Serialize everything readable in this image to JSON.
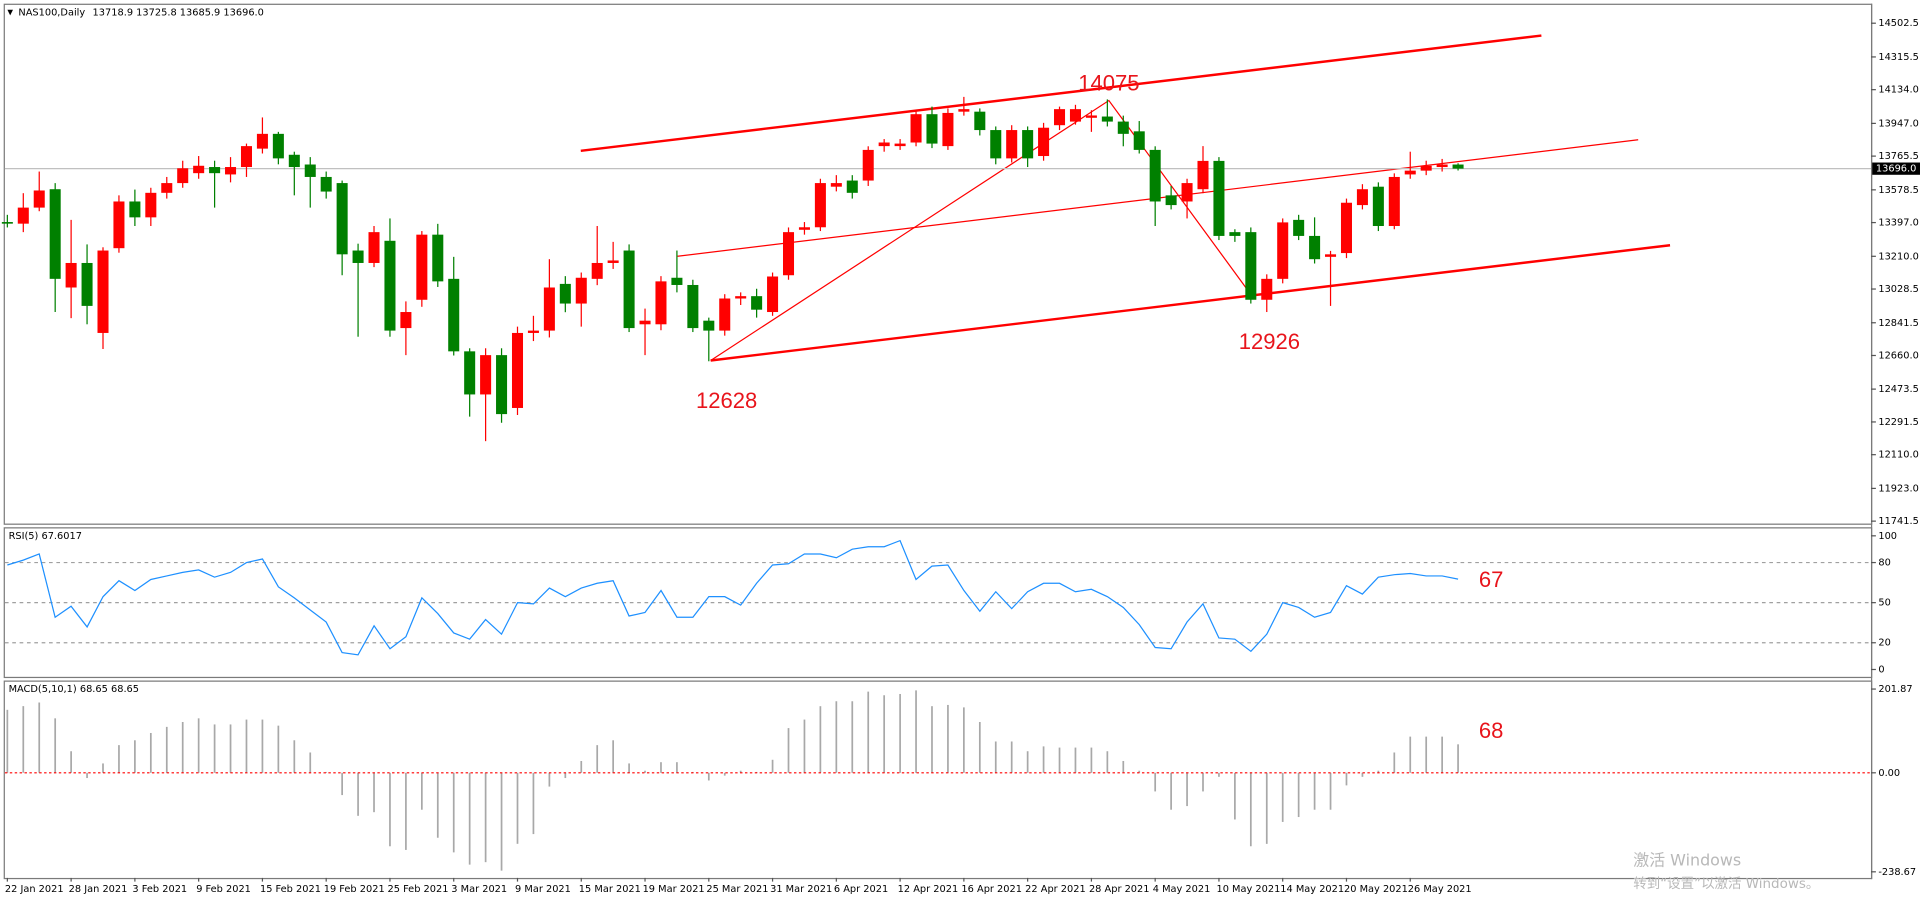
{
  "chart_data": [
    {
      "type": "candlestick",
      "title": "NAS100,Daily",
      "subtitle": "13718.9 13725.8 13685.9 13696.0",
      "categories": [
        "22 Jan 2021",
        null,
        null,
        null,
        "28 Jan 2021",
        null,
        null,
        null,
        "3 Feb 2021",
        null,
        null,
        null,
        "9 Feb 2021",
        null,
        null,
        null,
        "15 Feb 2021",
        null,
        null,
        null,
        "19 Feb 2021",
        null,
        null,
        null,
        "25 Feb 2021",
        null,
        null,
        null,
        "3 Mar 2021",
        null,
        null,
        null,
        "9 Mar 2021",
        null,
        null,
        null,
        "15 Mar 2021",
        null,
        null,
        null,
        "19 Mar 2021",
        null,
        null,
        null,
        "25 Mar 2021",
        null,
        null,
        null,
        "31 Mar 2021",
        null,
        null,
        null,
        "6 Apr 2021",
        null,
        null,
        null,
        "12 Apr 2021",
        null,
        null,
        null,
        "16 Apr 2021",
        null,
        null,
        null,
        "22 Apr 2021",
        null,
        null,
        null,
        "28 Apr 2021",
        null,
        null,
        null,
        "4 May 2021",
        null,
        null,
        null,
        "10 May 2021",
        null,
        null,
        null,
        "14 May 2021",
        null,
        null,
        null,
        "20 May 2021",
        null,
        null,
        null,
        "26 May 2021",
        null,
        null,
        null
      ],
      "open": [
        13400,
        13391,
        13480,
        13582,
        13037,
        13173,
        12785,
        13255,
        13514,
        13426,
        13562,
        13616,
        13671,
        13705,
        13664,
        13705,
        13807,
        13889,
        13773,
        13719,
        13650,
        13616,
        13242,
        13173,
        13296,
        12812,
        12969,
        13330,
        13085,
        12683,
        12444,
        12662,
        12369,
        12785,
        12798,
        13057,
        12948,
        13085,
        13173,
        13242,
        12833,
        12833,
        13091,
        13051,
        12853,
        12798,
        12976,
        12989,
        12901,
        13105,
        13357,
        13371,
        13596,
        13630,
        13630,
        13821,
        13821,
        13841,
        13998,
        13821,
        14012,
        14012,
        13910,
        13753,
        13910,
        13766,
        13937,
        13957,
        13978,
        13985,
        13957,
        13903,
        13800,
        13548,
        13514,
        13582,
        13739,
        13344,
        13344,
        12969,
        13085,
        13412,
        13323,
        13207,
        13228,
        13494,
        13596,
        13378,
        13664,
        13685,
        13705,
        13718.9
      ],
      "high": [
        13440,
        13560,
        13680,
        13616,
        13412,
        13276,
        13260,
        13548,
        13580,
        13590,
        13650,
        13740,
        13766,
        13740,
        13760,
        13835,
        13980,
        13900,
        13790,
        13760,
        13680,
        13630,
        13280,
        13378,
        13420,
        12960,
        13350,
        13390,
        13207,
        12700,
        12700,
        12700,
        12820,
        12880,
        13194,
        13100,
        13120,
        13378,
        13290,
        13276,
        12920,
        13100,
        13242,
        13080,
        12870,
        13000,
        13010,
        13030,
        13120,
        13370,
        13400,
        13640,
        13660,
        13660,
        13820,
        13860,
        13860,
        14020,
        14040,
        14030,
        14094,
        14030,
        13930,
        13937,
        13930,
        13950,
        14040,
        14050,
        14020,
        14080,
        13990,
        13960,
        13820,
        13600,
        13640,
        13821,
        13760,
        13360,
        13370,
        13110,
        13420,
        13440,
        13426,
        13240,
        13530,
        13610,
        13620,
        13670,
        13790,
        13740,
        13750,
        13725.8
      ],
      "low": [
        13370,
        13344,
        13460,
        12901,
        12867,
        12833,
        12696,
        13230,
        13378,
        13378,
        13530,
        13590,
        13640,
        13480,
        13620,
        13650,
        13780,
        13720,
        13548,
        13480,
        13530,
        13105,
        12764,
        13150,
        12764,
        12662,
        12930,
        13040,
        12660,
        12321,
        12185,
        12287,
        12330,
        12740,
        12760,
        12900,
        12820,
        13050,
        13140,
        12790,
        12662,
        12800,
        13010,
        12790,
        12628,
        12770,
        12940,
        12870,
        12880,
        13080,
        13330,
        13350,
        13570,
        13530,
        13600,
        13790,
        13800,
        13820,
        13810,
        13800,
        13990,
        13880,
        13720,
        13730,
        13705,
        13740,
        13910,
        13940,
        13900,
        13930,
        13820,
        13780,
        13378,
        13470,
        13420,
        13560,
        13300,
        13290,
        12948,
        12901,
        13060,
        13300,
        13170,
        12935,
        13200,
        13470,
        13350,
        13360,
        13640,
        13660,
        13680,
        13685.9
      ],
      "close": [
        13391,
        13480,
        13575,
        13085,
        13173,
        12935,
        13242,
        13514,
        13426,
        13562,
        13616,
        13698,
        13712,
        13671,
        13705,
        13821,
        13889,
        13753,
        13705,
        13650,
        13569,
        13221,
        13173,
        13344,
        12798,
        12901,
        13330,
        13071,
        12683,
        12444,
        12662,
        12335,
        12785,
        12798,
        13037,
        12948,
        13091,
        13173,
        13187,
        12812,
        12853,
        13071,
        13051,
        12812,
        12798,
        12976,
        12989,
        12914,
        13098,
        13344,
        13371,
        13616,
        13616,
        13562,
        13800,
        13841,
        13835,
        13998,
        13835,
        14005,
        14026,
        13910,
        13753,
        13910,
        13753,
        13923,
        14026,
        14026,
        13991,
        13957,
        13889,
        13800,
        13514,
        13494,
        13616,
        13739,
        13323,
        13323,
        12969,
        13085,
        13398,
        13323,
        13194,
        13221,
        13507,
        13582,
        13378,
        13650,
        13685,
        13712,
        13719,
        13696.0
      ],
      "up_color": "#ff0000",
      "down_color": "#008000",
      "ylim": [
        11728,
        14604
      ],
      "yticks": [
        14502.5,
        14315.5,
        {
          "value": 14134,
          "label": "14134.0"
        },
        {
          "value": 13947,
          "label": "13947.0"
        },
        13765.5,
        13578.5,
        {
          "value": 13397,
          "label": "13397.0"
        },
        {
          "value": 13210,
          "label": "13210.0"
        },
        13028.5,
        12841.5,
        {
          "value": 12660,
          "label": "12660.0"
        },
        12473.5,
        12291.5,
        {
          "value": 12110,
          "label": "12110.0"
        },
        {
          "value": 11923,
          "label": "11923.0"
        },
        11741.5
      ],
      "last_price": {
        "value": 13696,
        "label": "13696.0"
      },
      "annotations": [
        "14075",
        "12628",
        "12926"
      ]
    },
    {
      "type": "line",
      "title": "RSI(5) 67.6017",
      "color": "#1e90ff",
      "values": [
        78.2,
        81.8,
        86.4,
        39.1,
        47.3,
        31.8,
        54.5,
        66.4,
        59.1,
        67.3,
        70,
        72.7,
        74.5,
        69.1,
        72.7,
        80,
        82.7,
        61.8,
        53.6,
        44.5,
        35.5,
        12.7,
        10.9,
        32.7,
        15.5,
        24.5,
        53.6,
        41.8,
        27.3,
        22.7,
        37.3,
        26.4,
        50,
        49.1,
        60.9,
        54.5,
        60.9,
        64.5,
        66.4,
        40,
        42.7,
        59.1,
        39.1,
        39.1,
        54.5,
        54.5,
        48.2,
        64.5,
        78.2,
        79.1,
        86.4,
        86.4,
        83.6,
        90,
        91.8,
        91.8,
        96.4,
        67.3,
        77.3,
        78.2,
        59.1,
        43.6,
        58.2,
        45.5,
        58.2,
        64.5,
        64.5,
        58.2,
        60,
        54.5,
        46.4,
        33.6,
        16.4,
        15.5,
        35.5,
        49.1,
        23.6,
        22.7,
        13.6,
        26.4,
        50,
        46.4,
        39.1,
        42.7,
        62.7,
        56.4,
        69.1,
        70.9,
        71.8,
        70,
        70,
        67.6017
      ],
      "ylim": [
        -5.5,
        105.5
      ],
      "yticks": [
        100,
        80,
        50,
        20,
        0
      ],
      "grid_levels": [
        80,
        50,
        20
      ],
      "annotations": [
        "67"
      ]
    },
    {
      "type": "bar",
      "title": "MACD(5,10,1) 68.65 68.65",
      "color": "#a8a8a8",
      "values": [
        151.8,
        160.6,
        169.5,
        131.3,
        52,
        -12.6,
        22.6,
        66.7,
        78.4,
        96,
        110.7,
        122.5,
        131.3,
        116.6,
        116.6,
        128.3,
        128.3,
        113.7,
        78.4,
        49,
        2.1,
        -53.7,
        -103.7,
        -94.9,
        -177.1,
        -185.9,
        -89,
        -156.6,
        -191.9,
        -221.2,
        -215.4,
        -235.8,
        -171.2,
        -147.7,
        -33.2,
        -12.6,
        28.5,
        66.7,
        78.4,
        22.6,
        5,
        25.6,
        25.6,
        2.1,
        -18.5,
        -6.8,
        5,
        2.1,
        31.4,
        107.8,
        128.3,
        160.6,
        172.4,
        172.4,
        195.8,
        187,
        190,
        198.7,
        160.6,
        163.6,
        157.7,
        122.5,
        75.5,
        75.5,
        52,
        63.7,
        60.8,
        60.8,
        60.8,
        52,
        28.5,
        5,
        -44.9,
        -89,
        -80.2,
        -44.9,
        -9.7,
        -112.5,
        -177.1,
        -171.2,
        -118.4,
        -106.6,
        -89,
        -89,
        -30.3,
        -9.7,
        5,
        49,
        87.2,
        87.2,
        87.2,
        68.65
      ],
      "ylim": [
        -253.4,
        219.5
      ],
      "yticks": [
        201.87,
        {
          "value": 0,
          "label": "0.00"
        },
        -238.67
      ],
      "annotations": [
        "68"
      ]
    }
  ],
  "watermark": [
    "激活 Windows",
    "转到“设置”以激活 Windows。"
  ]
}
